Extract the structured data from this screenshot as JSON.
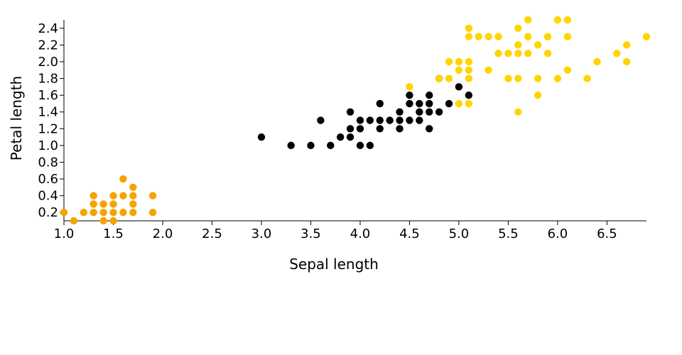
{
  "chart_data": {
    "type": "scatter",
    "xlabel": "Sepal length",
    "ylabel": "Petal length",
    "xlim": [
      1.0,
      6.9
    ],
    "ylim": [
      0.1,
      2.5
    ],
    "x_ticks": [
      "1.0",
      "1.5",
      "2.0",
      "2.5",
      "3.0",
      "3.5",
      "4.0",
      "4.5",
      "5.0",
      "5.5",
      "6.0",
      "6.5"
    ],
    "y_ticks": [
      "0.2",
      "0.4",
      "0.6",
      "0.8",
      "1.0",
      "1.2",
      "1.4",
      "1.6",
      "1.8",
      "2.0",
      "2.2",
      "2.4"
    ],
    "grid": false,
    "series": [
      {
        "color": "#f5a300",
        "points": [
          [
            1.0,
            0.2
          ],
          [
            1.1,
            0.1
          ],
          [
            1.2,
            0.2
          ],
          [
            1.3,
            0.2
          ],
          [
            1.3,
            0.3
          ],
          [
            1.3,
            0.4
          ],
          [
            1.4,
            0.1
          ],
          [
            1.4,
            0.2
          ],
          [
            1.4,
            0.3
          ],
          [
            1.5,
            0.1
          ],
          [
            1.5,
            0.2
          ],
          [
            1.5,
            0.3
          ],
          [
            1.5,
            0.4
          ],
          [
            1.6,
            0.2
          ],
          [
            1.6,
            0.4
          ],
          [
            1.6,
            0.6
          ],
          [
            1.7,
            0.2
          ],
          [
            1.7,
            0.3
          ],
          [
            1.7,
            0.4
          ],
          [
            1.7,
            0.5
          ],
          [
            1.9,
            0.2
          ],
          [
            1.9,
            0.4
          ]
        ]
      },
      {
        "color": "#000000",
        "points": [
          [
            3.0,
            1.1
          ],
          [
            3.3,
            1.0
          ],
          [
            3.5,
            1.0
          ],
          [
            3.6,
            1.3
          ],
          [
            3.7,
            1.0
          ],
          [
            3.8,
            1.1
          ],
          [
            3.9,
            1.1
          ],
          [
            3.9,
            1.2
          ],
          [
            3.9,
            1.4
          ],
          [
            4.0,
            1.0
          ],
          [
            4.0,
            1.2
          ],
          [
            4.0,
            1.3
          ],
          [
            4.1,
            1.0
          ],
          [
            4.1,
            1.3
          ],
          [
            4.2,
            1.2
          ],
          [
            4.2,
            1.3
          ],
          [
            4.2,
            1.5
          ],
          [
            4.3,
            1.3
          ],
          [
            4.4,
            1.2
          ],
          [
            4.4,
            1.3
          ],
          [
            4.4,
            1.4
          ],
          [
            4.5,
            1.3
          ],
          [
            4.5,
            1.5
          ],
          [
            4.5,
            1.6
          ],
          [
            4.6,
            1.3
          ],
          [
            4.6,
            1.4
          ],
          [
            4.6,
            1.5
          ],
          [
            4.7,
            1.2
          ],
          [
            4.7,
            1.4
          ],
          [
            4.7,
            1.5
          ],
          [
            4.7,
            1.6
          ],
          [
            4.8,
            1.4
          ],
          [
            4.8,
            1.8
          ],
          [
            4.9,
            1.5
          ],
          [
            5.0,
            1.7
          ],
          [
            5.1,
            1.6
          ]
        ]
      },
      {
        "color": "#ffd500",
        "points": [
          [
            4.5,
            1.7
          ],
          [
            4.8,
            1.8
          ],
          [
            4.9,
            1.8
          ],
          [
            4.9,
            2.0
          ],
          [
            5.0,
            1.5
          ],
          [
            5.0,
            1.9
          ],
          [
            5.0,
            2.0
          ],
          [
            5.1,
            1.5
          ],
          [
            5.1,
            1.8
          ],
          [
            5.1,
            1.9
          ],
          [
            5.1,
            2.0
          ],
          [
            5.1,
            2.3
          ],
          [
            5.1,
            2.4
          ],
          [
            5.2,
            2.3
          ],
          [
            5.3,
            1.9
          ],
          [
            5.3,
            2.3
          ],
          [
            5.4,
            2.1
          ],
          [
            5.4,
            2.3
          ],
          [
            5.5,
            1.8
          ],
          [
            5.5,
            2.1
          ],
          [
            5.6,
            1.4
          ],
          [
            5.6,
            1.8
          ],
          [
            5.6,
            2.1
          ],
          [
            5.6,
            2.2
          ],
          [
            5.6,
            2.4
          ],
          [
            5.7,
            2.1
          ],
          [
            5.7,
            2.3
          ],
          [
            5.7,
            2.5
          ],
          [
            5.8,
            1.6
          ],
          [
            5.8,
            1.8
          ],
          [
            5.8,
            2.2
          ],
          [
            5.9,
            2.1
          ],
          [
            5.9,
            2.3
          ],
          [
            6.0,
            1.8
          ],
          [
            6.0,
            2.5
          ],
          [
            6.1,
            1.9
          ],
          [
            6.1,
            2.3
          ],
          [
            6.1,
            2.5
          ],
          [
            6.3,
            1.8
          ],
          [
            6.4,
            2.0
          ],
          [
            6.6,
            2.1
          ],
          [
            6.7,
            2.0
          ],
          [
            6.7,
            2.2
          ],
          [
            6.9,
            2.3
          ]
        ]
      }
    ]
  }
}
